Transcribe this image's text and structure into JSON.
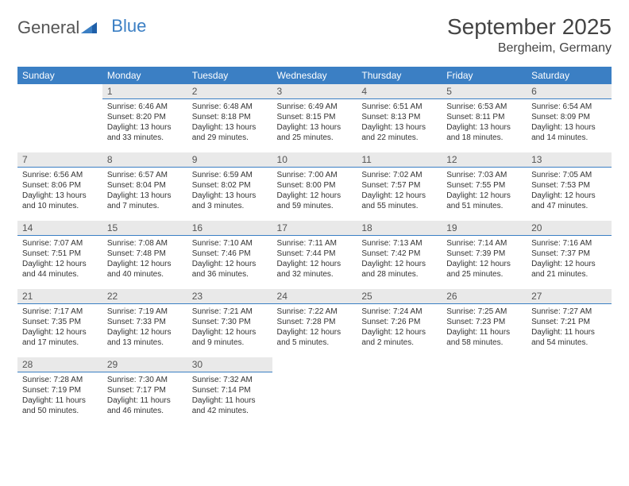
{
  "brand": {
    "general": "General",
    "blue": "Blue"
  },
  "colors": {
    "accent": "#3b7fc4",
    "daynum_bg": "#e9e9e9",
    "text": "#333",
    "header_text": "#444"
  },
  "title": {
    "month": "September 2025",
    "location": "Bergheim, Germany"
  },
  "weekdays": [
    "Sunday",
    "Monday",
    "Tuesday",
    "Wednesday",
    "Thursday",
    "Friday",
    "Saturday"
  ],
  "grid": [
    [
      null,
      {
        "n": "1",
        "sr": "Sunrise: 6:46 AM",
        "ss": "Sunset: 8:20 PM",
        "dl": "Daylight: 13 hours and 33 minutes."
      },
      {
        "n": "2",
        "sr": "Sunrise: 6:48 AM",
        "ss": "Sunset: 8:18 PM",
        "dl": "Daylight: 13 hours and 29 minutes."
      },
      {
        "n": "3",
        "sr": "Sunrise: 6:49 AM",
        "ss": "Sunset: 8:15 PM",
        "dl": "Daylight: 13 hours and 25 minutes."
      },
      {
        "n": "4",
        "sr": "Sunrise: 6:51 AM",
        "ss": "Sunset: 8:13 PM",
        "dl": "Daylight: 13 hours and 22 minutes."
      },
      {
        "n": "5",
        "sr": "Sunrise: 6:53 AM",
        "ss": "Sunset: 8:11 PM",
        "dl": "Daylight: 13 hours and 18 minutes."
      },
      {
        "n": "6",
        "sr": "Sunrise: 6:54 AM",
        "ss": "Sunset: 8:09 PM",
        "dl": "Daylight: 13 hours and 14 minutes."
      }
    ],
    [
      {
        "n": "7",
        "sr": "Sunrise: 6:56 AM",
        "ss": "Sunset: 8:06 PM",
        "dl": "Daylight: 13 hours and 10 minutes."
      },
      {
        "n": "8",
        "sr": "Sunrise: 6:57 AM",
        "ss": "Sunset: 8:04 PM",
        "dl": "Daylight: 13 hours and 7 minutes."
      },
      {
        "n": "9",
        "sr": "Sunrise: 6:59 AM",
        "ss": "Sunset: 8:02 PM",
        "dl": "Daylight: 13 hours and 3 minutes."
      },
      {
        "n": "10",
        "sr": "Sunrise: 7:00 AM",
        "ss": "Sunset: 8:00 PM",
        "dl": "Daylight: 12 hours and 59 minutes."
      },
      {
        "n": "11",
        "sr": "Sunrise: 7:02 AM",
        "ss": "Sunset: 7:57 PM",
        "dl": "Daylight: 12 hours and 55 minutes."
      },
      {
        "n": "12",
        "sr": "Sunrise: 7:03 AM",
        "ss": "Sunset: 7:55 PM",
        "dl": "Daylight: 12 hours and 51 minutes."
      },
      {
        "n": "13",
        "sr": "Sunrise: 7:05 AM",
        "ss": "Sunset: 7:53 PM",
        "dl": "Daylight: 12 hours and 47 minutes."
      }
    ],
    [
      {
        "n": "14",
        "sr": "Sunrise: 7:07 AM",
        "ss": "Sunset: 7:51 PM",
        "dl": "Daylight: 12 hours and 44 minutes."
      },
      {
        "n": "15",
        "sr": "Sunrise: 7:08 AM",
        "ss": "Sunset: 7:48 PM",
        "dl": "Daylight: 12 hours and 40 minutes."
      },
      {
        "n": "16",
        "sr": "Sunrise: 7:10 AM",
        "ss": "Sunset: 7:46 PM",
        "dl": "Daylight: 12 hours and 36 minutes."
      },
      {
        "n": "17",
        "sr": "Sunrise: 7:11 AM",
        "ss": "Sunset: 7:44 PM",
        "dl": "Daylight: 12 hours and 32 minutes."
      },
      {
        "n": "18",
        "sr": "Sunrise: 7:13 AM",
        "ss": "Sunset: 7:42 PM",
        "dl": "Daylight: 12 hours and 28 minutes."
      },
      {
        "n": "19",
        "sr": "Sunrise: 7:14 AM",
        "ss": "Sunset: 7:39 PM",
        "dl": "Daylight: 12 hours and 25 minutes."
      },
      {
        "n": "20",
        "sr": "Sunrise: 7:16 AM",
        "ss": "Sunset: 7:37 PM",
        "dl": "Daylight: 12 hours and 21 minutes."
      }
    ],
    [
      {
        "n": "21",
        "sr": "Sunrise: 7:17 AM",
        "ss": "Sunset: 7:35 PM",
        "dl": "Daylight: 12 hours and 17 minutes."
      },
      {
        "n": "22",
        "sr": "Sunrise: 7:19 AM",
        "ss": "Sunset: 7:33 PM",
        "dl": "Daylight: 12 hours and 13 minutes."
      },
      {
        "n": "23",
        "sr": "Sunrise: 7:21 AM",
        "ss": "Sunset: 7:30 PM",
        "dl": "Daylight: 12 hours and 9 minutes."
      },
      {
        "n": "24",
        "sr": "Sunrise: 7:22 AM",
        "ss": "Sunset: 7:28 PM",
        "dl": "Daylight: 12 hours and 5 minutes."
      },
      {
        "n": "25",
        "sr": "Sunrise: 7:24 AM",
        "ss": "Sunset: 7:26 PM",
        "dl": "Daylight: 12 hours and 2 minutes."
      },
      {
        "n": "26",
        "sr": "Sunrise: 7:25 AM",
        "ss": "Sunset: 7:23 PM",
        "dl": "Daylight: 11 hours and 58 minutes."
      },
      {
        "n": "27",
        "sr": "Sunrise: 7:27 AM",
        "ss": "Sunset: 7:21 PM",
        "dl": "Daylight: 11 hours and 54 minutes."
      }
    ],
    [
      {
        "n": "28",
        "sr": "Sunrise: 7:28 AM",
        "ss": "Sunset: 7:19 PM",
        "dl": "Daylight: 11 hours and 50 minutes."
      },
      {
        "n": "29",
        "sr": "Sunrise: 7:30 AM",
        "ss": "Sunset: 7:17 PM",
        "dl": "Daylight: 11 hours and 46 minutes."
      },
      {
        "n": "30",
        "sr": "Sunrise: 7:32 AM",
        "ss": "Sunset: 7:14 PM",
        "dl": "Daylight: 11 hours and 42 minutes."
      },
      null,
      null,
      null,
      null
    ]
  ]
}
